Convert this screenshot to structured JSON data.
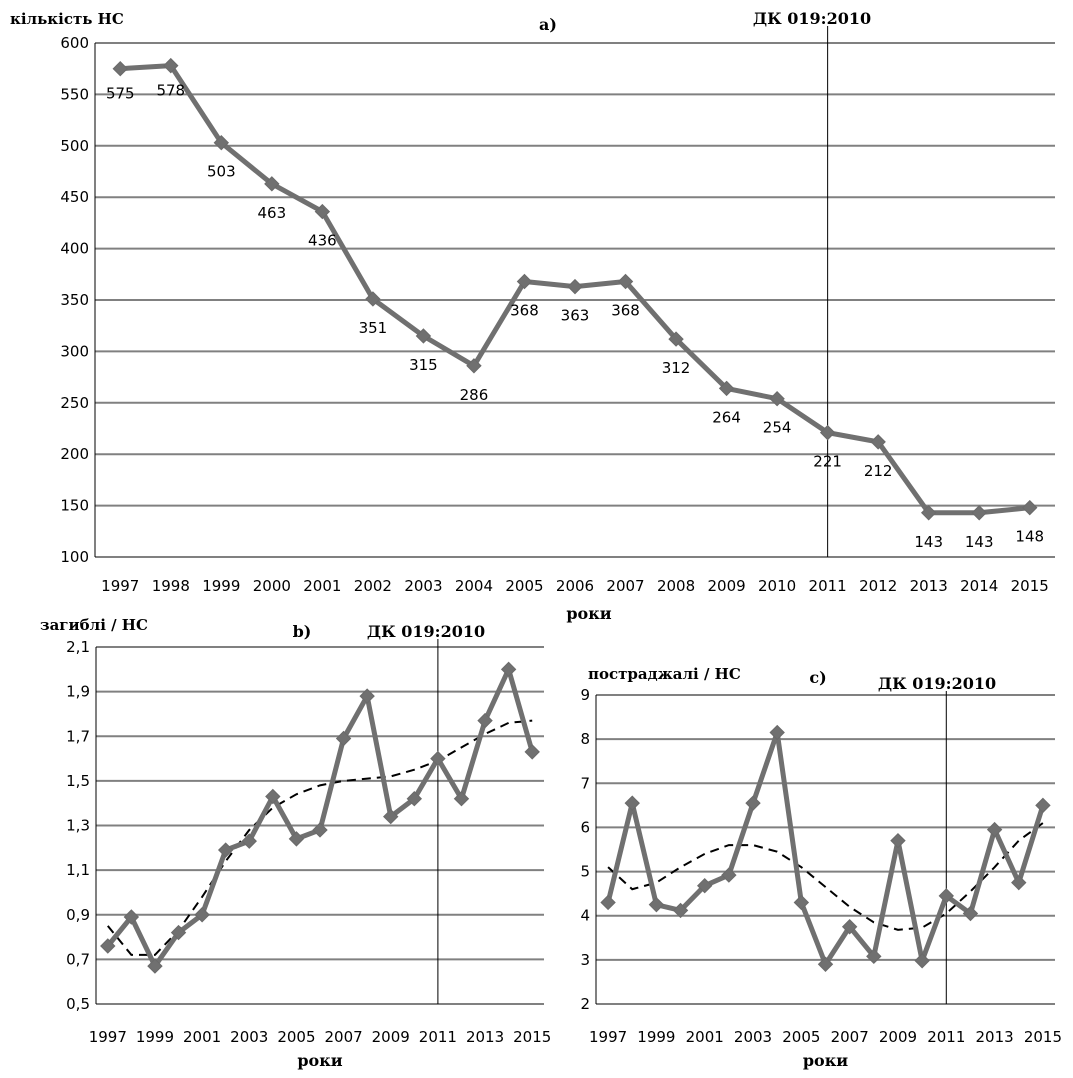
{
  "chart_data": [
    {
      "id": "a",
      "type": "line",
      "panel_label": "a)",
      "ylabel": "кількість НС",
      "xlabel": "роки",
      "annotation": "ДК 019:2010",
      "annotation_x": "2011",
      "ylim": [
        100,
        600
      ],
      "yticks": [
        "100",
        "150",
        "200",
        "250",
        "300",
        "350",
        "400",
        "450",
        "500",
        "550",
        "600"
      ],
      "categories": [
        "1997",
        "1998",
        "1999",
        "2000",
        "2001",
        "2002",
        "2003",
        "2004",
        "2005",
        "2006",
        "2007",
        "2008",
        "2009",
        "2010",
        "2011",
        "2012",
        "2013",
        "2014",
        "2015"
      ],
      "series": [
        {
          "values": [
            575,
            578,
            503,
            463,
            436,
            351,
            315,
            286,
            368,
            363,
            368,
            312,
            264,
            254,
            221,
            212,
            143,
            143,
            148
          ]
        }
      ],
      "data_labels": true,
      "grid": true
    },
    {
      "id": "b",
      "type": "line",
      "panel_label": "b)",
      "ylabel": "загиблі / НС",
      "xlabel": "роки",
      "annotation": "ДК 019:2010",
      "annotation_x": "2011",
      "ylim": [
        0.5,
        2.1
      ],
      "yticks": [
        "0,5",
        "0,7",
        "0,9",
        "1,1",
        "1,3",
        "1,5",
        "1,7",
        "1,9",
        "2,1"
      ],
      "categories": [
        "1997",
        "1998",
        "1999",
        "2000",
        "2001",
        "2002",
        "2003",
        "2004",
        "2005",
        "2006",
        "2007",
        "2008",
        "2009",
        "2010",
        "2011",
        "2012",
        "2013",
        "2014",
        "2015"
      ],
      "tick_labels": [
        "1997",
        "1999",
        "2001",
        "2003",
        "2005",
        "2007",
        "2009",
        "2011",
        "2013",
        "2015"
      ],
      "series": [
        {
          "values": [
            0.76,
            0.89,
            0.67,
            0.82,
            0.9,
            1.19,
            1.23,
            1.43,
            1.24,
            1.28,
            1.69,
            1.88,
            1.34,
            1.42,
            1.6,
            1.42,
            1.77,
            2.0,
            1.63
          ]
        }
      ],
      "trend": [
        0.85,
        0.72,
        0.72,
        0.83,
        0.98,
        1.14,
        1.28,
        1.38,
        1.44,
        1.48,
        1.5,
        1.51,
        1.52,
        1.55,
        1.59,
        1.65,
        1.71,
        1.76,
        1.77
      ],
      "grid": true
    },
    {
      "id": "c",
      "type": "line",
      "panel_label": "c)",
      "ylabel": "постраджалі / НС",
      "xlabel": "роки",
      "annotation": "ДК 019:2010",
      "annotation_x": "2011",
      "ylim": [
        2,
        9
      ],
      "yticks": [
        "2",
        "3",
        "4",
        "5",
        "6",
        "7",
        "8",
        "9"
      ],
      "categories": [
        "1997",
        "1998",
        "1999",
        "2000",
        "2001",
        "2002",
        "2003",
        "2004",
        "2005",
        "2006",
        "2007",
        "2008",
        "2009",
        "2010",
        "2011",
        "2012",
        "2013",
        "2014",
        "2015"
      ],
      "tick_labels": [
        "1997",
        "1999",
        "2001",
        "2003",
        "2005",
        "2007",
        "2009",
        "2011",
        "2013",
        "2015"
      ],
      "series": [
        {
          "values": [
            4.3,
            6.55,
            4.25,
            4.12,
            4.68,
            4.92,
            6.55,
            8.15,
            4.3,
            2.9,
            3.75,
            3.08,
            5.7,
            2.98,
            4.45,
            4.05,
            5.95,
            4.75,
            6.5
          ]
        }
      ],
      "trend": [
        5.1,
        4.6,
        4.75,
        5.1,
        5.4,
        5.6,
        5.6,
        5.45,
        5.1,
        4.65,
        4.2,
        3.85,
        3.68,
        3.73,
        4.05,
        4.55,
        5.1,
        5.7,
        6.1
      ],
      "grid": true
    }
  ]
}
